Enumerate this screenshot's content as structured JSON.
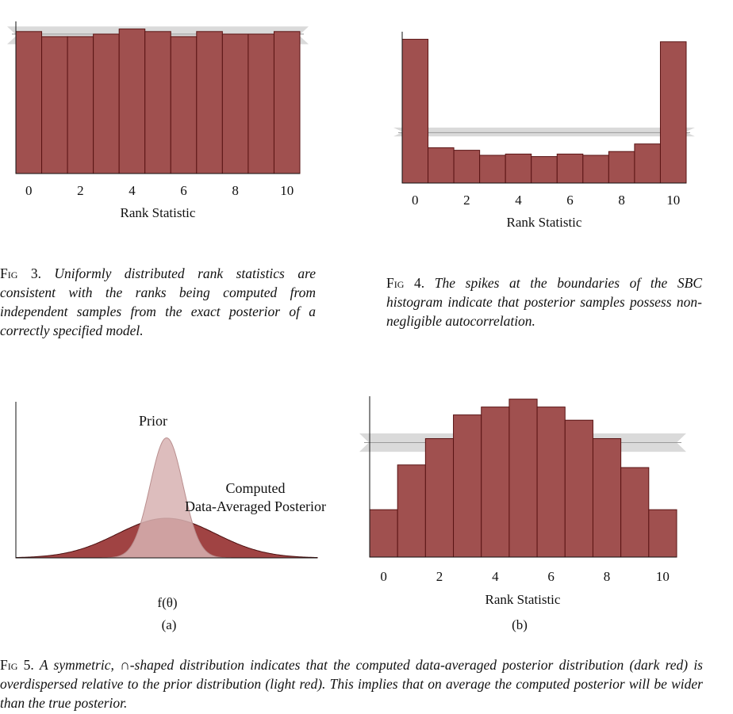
{
  "figures": {
    "fig3": {
      "caption_label": "Fig 3.",
      "caption_text": "Uniformly distributed rank statistics are consistent with the ranks being computed from independent samples from the exact posterior of a correctly specified model."
    },
    "fig4": {
      "caption_label": "Fig 4.",
      "caption_text": "The spikes at the boundaries of the SBC histogram indicate that posterior samples possess non-negligible autocorrelation."
    },
    "fig5": {
      "caption_label": "Fig 5.",
      "caption_text": "A symmetric, ∩-shaped distribution indicates that the computed data-averaged posterior distribution (dark red) is overdispersed relative to the prior distribution (light red). This implies that on average the computed posterior will be wider than the true posterior.",
      "panel_a_label": "(a)",
      "panel_b_label": "(b)",
      "curve_xlabel": "f(θ)",
      "prior_label": "Prior",
      "posterior_label_line1": "Computed",
      "posterior_label_line2": "Data-Averaged Posterior"
    }
  },
  "colors": {
    "bar_fill": "#a0504f",
    "bar_edge": "#5a1414",
    "band": "#dadada",
    "prior_fill": "#d7b1b1",
    "prior_label": "#c7a0a0",
    "posterior_fill": "#a04343",
    "posterior_label": "#8b1a1a"
  },
  "chart_data": [
    {
      "id": "fig3",
      "type": "bar",
      "categories": [
        0,
        1,
        2,
        3,
        4,
        5,
        6,
        7,
        8,
        9,
        10
      ],
      "values": [
        56,
        54,
        54,
        55,
        57,
        56,
        54,
        56,
        55,
        55,
        56
      ],
      "band": [
        51,
        58
      ],
      "band_center": 55,
      "xticks": [
        0,
        2,
        4,
        6,
        8,
        10
      ],
      "xlabel": "Rank Statistic",
      "ylim": [
        0,
        60
      ]
    },
    {
      "id": "fig4",
      "type": "bar",
      "categories": [
        0,
        1,
        2,
        3,
        4,
        5,
        6,
        7,
        8,
        9,
        10
      ],
      "values": [
        57,
        14,
        13,
        11,
        11.5,
        10.5,
        11.5,
        11,
        12.5,
        15.5,
        56
      ],
      "band": [
        18.5,
        22
      ],
      "band_center": 20,
      "xticks": [
        0,
        2,
        4,
        6,
        8,
        10
      ],
      "xlabel": "Rank Statistic",
      "ylim": [
        0,
        60
      ]
    },
    {
      "id": "fig5a",
      "type": "area",
      "series": [
        {
          "name": "Prior",
          "mean": 0,
          "sd": 0.6,
          "peak": 1.0
        },
        {
          "name": "Computed Data-Averaged Posterior",
          "mean": 0,
          "sd": 1.8,
          "peak": 0.33
        }
      ],
      "xlim": [
        -5.5,
        5.5
      ],
      "ylim": [
        0,
        1.3
      ],
      "xlabel": "f(θ)"
    },
    {
      "id": "fig5b",
      "type": "bar",
      "categories": [
        0,
        1,
        2,
        3,
        4,
        5,
        6,
        7,
        8,
        9,
        10
      ],
      "values": [
        18,
        35,
        45,
        54,
        57,
        60,
        57,
        52,
        45,
        34,
        18
      ],
      "band": [
        40,
        47
      ],
      "band_center": 43.5,
      "xticks": [
        0,
        2,
        4,
        6,
        8,
        10
      ],
      "xlabel": "Rank Statistic",
      "ylim": [
        0,
        62
      ]
    }
  ]
}
